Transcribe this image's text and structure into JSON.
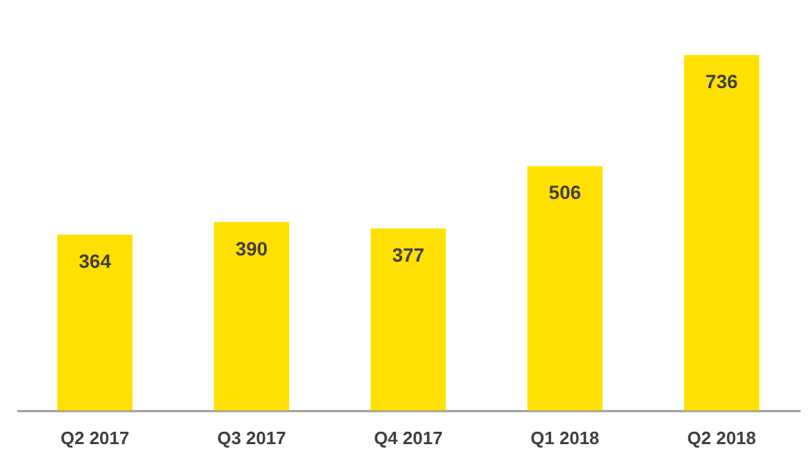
{
  "chart_data": {
    "type": "bar",
    "categories": [
      "Q2 2017",
      "Q3 2017",
      "Q4 2017",
      "Q1 2018",
      "Q2 2018"
    ],
    "values": [
      364,
      390,
      377,
      506,
      736
    ],
    "color": "#ffe000",
    "data_labels": true
  }
}
